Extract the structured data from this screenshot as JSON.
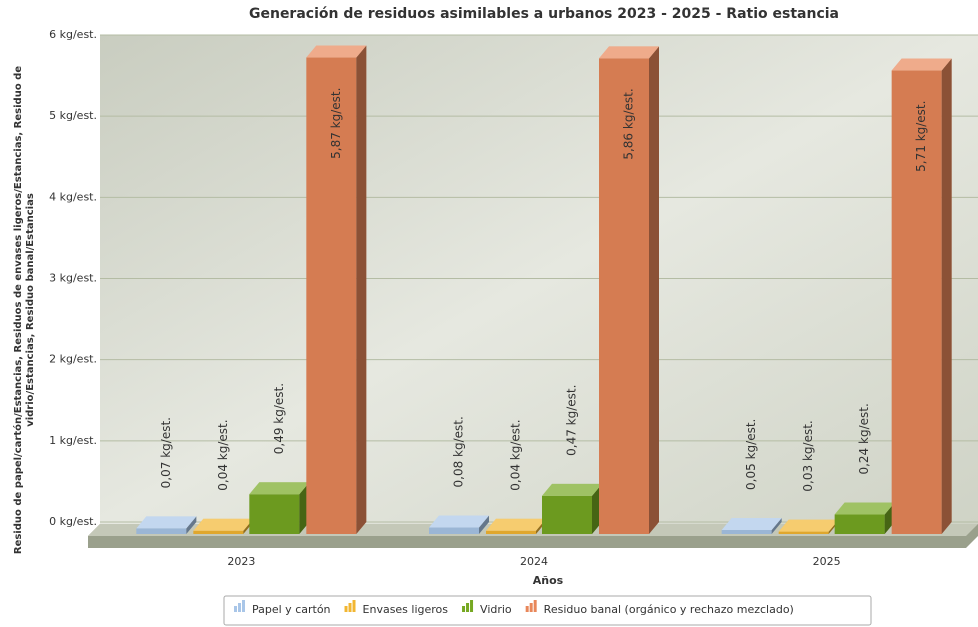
{
  "chart_data": {
    "type": "bar",
    "title": "Generación de residuos asimilables a urbanos 2023 - 2025 - Ratio estancia",
    "x_label": "Años",
    "y_label": [
      "Residuo de papel/cartón/Estancias, Residuos de envases ligeros/Estancias, Residuo de",
      "vidrio/Estancias, Residuo banal/Estancias"
    ],
    "categories": [
      "2023",
      "2024",
      "2025"
    ],
    "series": [
      {
        "name": "Papel y cartón",
        "color": "#a9c6e8",
        "values": [
          0.07,
          0.08,
          0.05
        ],
        "value_labels": [
          "0,07 kg/est.",
          "0,08 kg/est.",
          "0,05 kg/est."
        ]
      },
      {
        "name": "Envases ligeros",
        "color": "#f2b632",
        "values": [
          0.04,
          0.04,
          0.03
        ],
        "value_labels": [
          "0,04 kg/est.",
          "0,04 kg/est.",
          "0,03 kg/est."
        ]
      },
      {
        "name": "Vidrio",
        "color": "#76a822",
        "values": [
          0.49,
          0.47,
          0.24
        ],
        "value_labels": [
          "0,49 kg/est.",
          "0,47 kg/est.",
          "0,24 kg/est."
        ]
      },
      {
        "name": "Residuo banal (orgánico y rechazo mezclado)",
        "color": "#e8875a",
        "values": [
          5.87,
          5.86,
          5.71
        ],
        "value_labels": [
          "5,87 kg/est.",
          "5,86 kg/est.",
          "5,71 kg/est."
        ]
      }
    ],
    "ylim": [
      0,
      6
    ],
    "yticks": [
      {
        "value": 0,
        "label": "0 kg/est."
      },
      {
        "value": 1,
        "label": "1 kg/est."
      },
      {
        "value": 2,
        "label": "2 kg/est."
      },
      {
        "value": 3,
        "label": "3 kg/est."
      },
      {
        "value": 4,
        "label": "4 kg/est."
      },
      {
        "value": 5,
        "label": "5 kg/est."
      },
      {
        "value": 6,
        "label": "6 kg/est."
      }
    ],
    "grid": true
  }
}
